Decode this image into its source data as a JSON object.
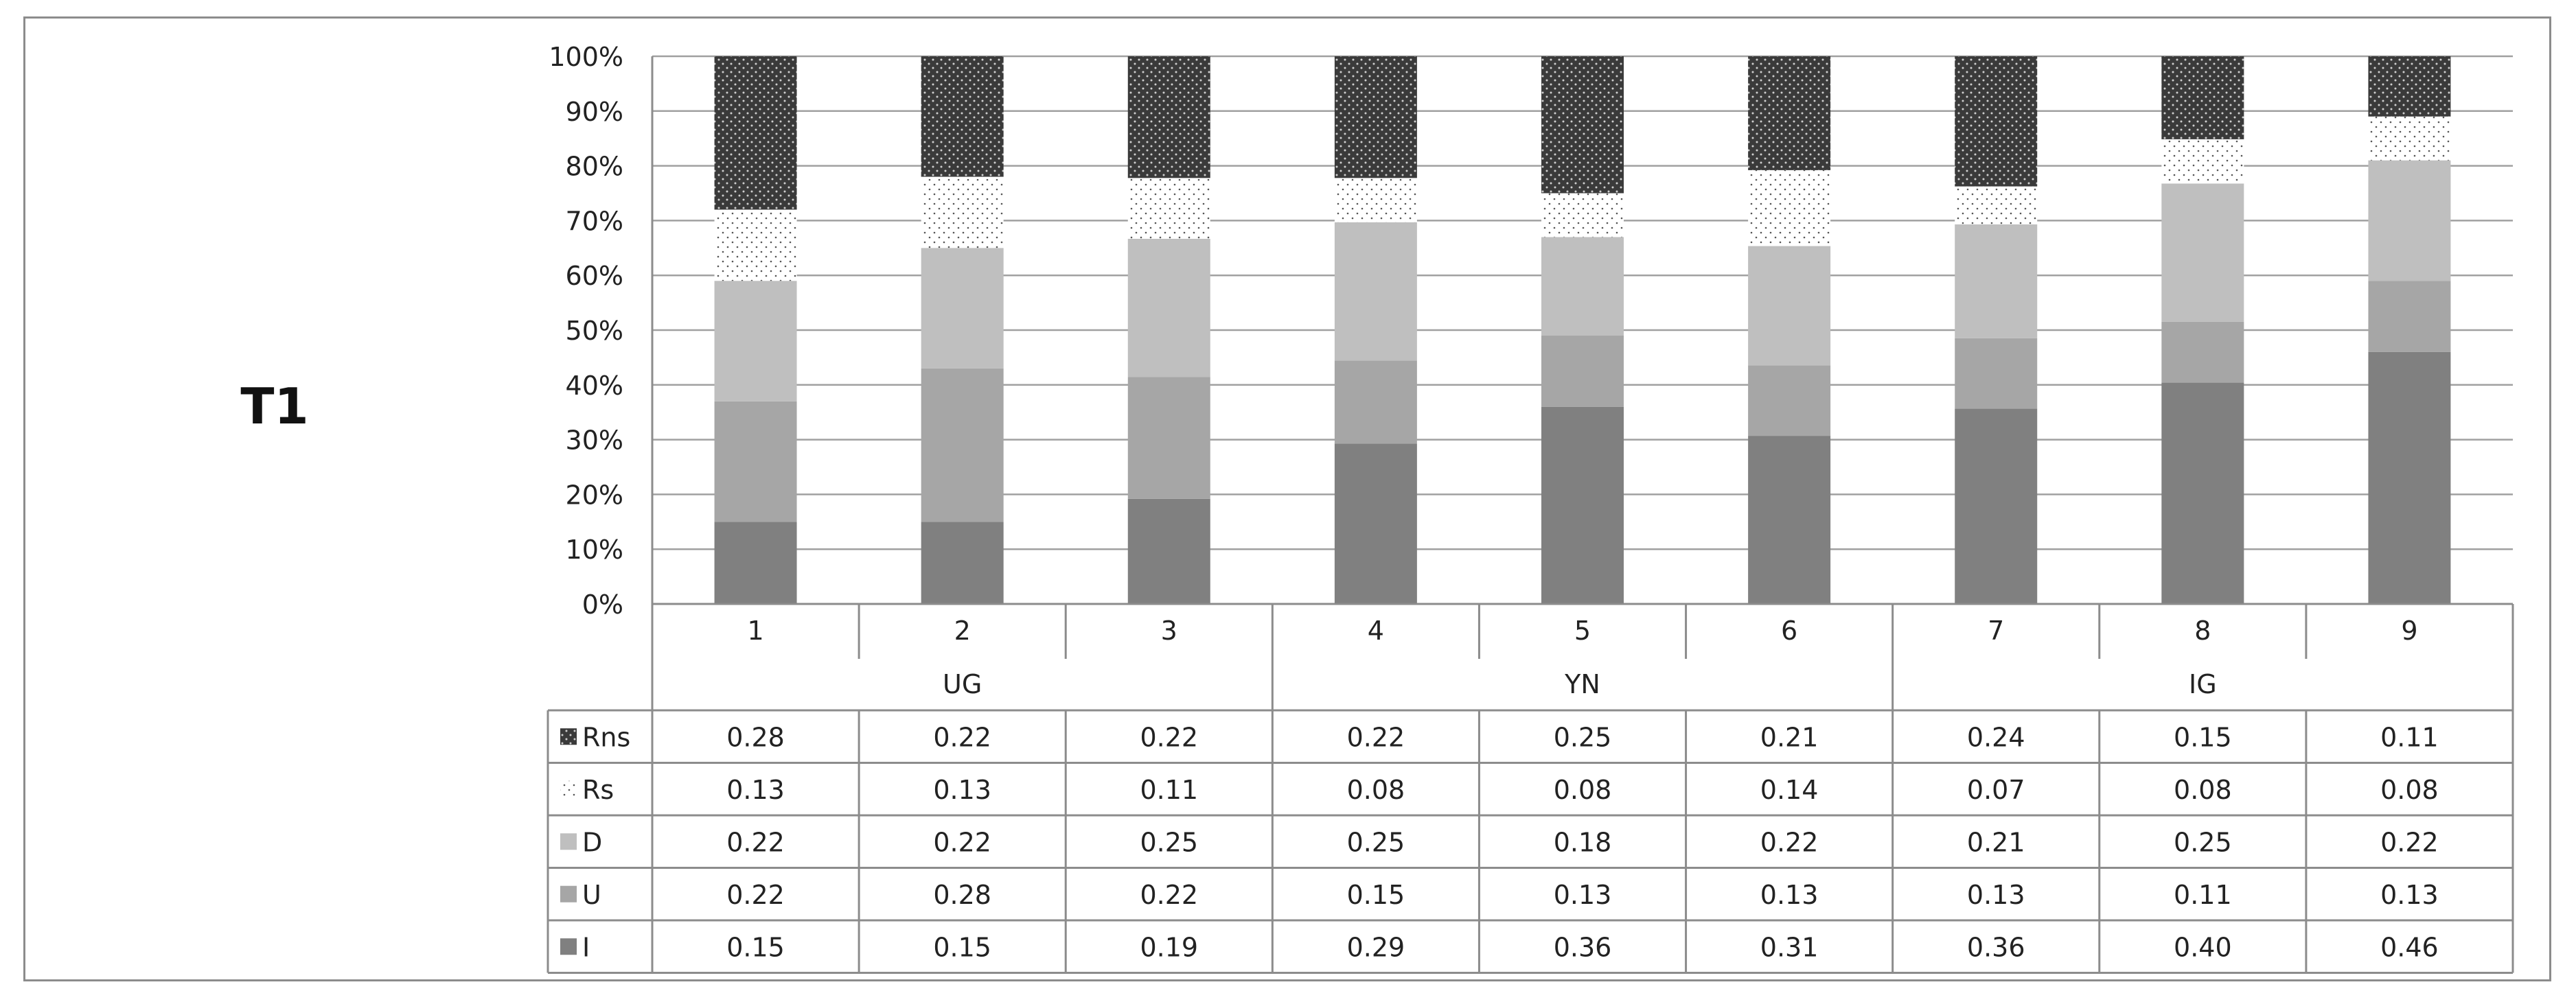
{
  "panel_label": "T1",
  "chart_data": {
    "type": "bar",
    "stacked": true,
    "normalized": true,
    "title": "",
    "xlabel": "",
    "ylabel": "",
    "ylim": [
      0,
      1
    ],
    "yticks": [
      "0%",
      "10%",
      "20%",
      "30%",
      "40%",
      "50%",
      "60%",
      "70%",
      "80%",
      "90%",
      "100%"
    ],
    "categories": [
      "1",
      "2",
      "3",
      "4",
      "5",
      "6",
      "7",
      "8",
      "9"
    ],
    "groups": [
      {
        "label": "UG",
        "span": [
          0,
          2
        ]
      },
      {
        "label": "YN",
        "span": [
          3,
          5
        ]
      },
      {
        "label": "IG",
        "span": [
          6,
          8
        ]
      }
    ],
    "legend_placement": "data-table-left",
    "series": [
      {
        "name": "I",
        "color": "#808080",
        "pattern": "solid",
        "values": [
          0.15,
          0.15,
          0.19,
          0.29,
          0.36,
          0.31,
          0.36,
          0.4,
          0.46
        ]
      },
      {
        "name": "U",
        "color": "#a6a6a6",
        "pattern": "solid",
        "values": [
          0.22,
          0.28,
          0.22,
          0.15,
          0.13,
          0.13,
          0.13,
          0.11,
          0.13
        ]
      },
      {
        "name": "D",
        "color": "#bfbfbf",
        "pattern": "solid",
        "values": [
          0.22,
          0.22,
          0.25,
          0.25,
          0.18,
          0.22,
          0.21,
          0.25,
          0.22
        ]
      },
      {
        "name": "Rs",
        "color": "#ffffff",
        "pattern": "sparse-dots",
        "values": [
          0.13,
          0.13,
          0.11,
          0.08,
          0.08,
          0.14,
          0.07,
          0.08,
          0.08
        ]
      },
      {
        "name": "Rns",
        "color": "#404040",
        "pattern": "dense-dots",
        "values": [
          0.28,
          0.22,
          0.22,
          0.22,
          0.25,
          0.21,
          0.24,
          0.15,
          0.11
        ]
      }
    ],
    "table_values": [
      [
        "0.28",
        "0.22",
        "0.22",
        "0.22",
        "0.25",
        "0.21",
        "0.24",
        "0.15",
        "0.11"
      ],
      [
        "0.13",
        "0.13",
        "0.11",
        "0.08",
        "0.08",
        "0.14",
        "0.07",
        "0.08",
        "0.08"
      ],
      [
        "0.22",
        "0.22",
        "0.25",
        "0.25",
        "0.18",
        "0.22",
        "0.21",
        "0.25",
        "0.22"
      ],
      [
        "0.22",
        "0.28",
        "0.22",
        "0.15",
        "0.13",
        "0.13",
        "0.13",
        "0.11",
        "0.13"
      ],
      [
        "0.15",
        "0.15",
        "0.19",
        "0.29",
        "0.36",
        "0.31",
        "0.36",
        "0.40",
        "0.46"
      ]
    ],
    "table_row_order": [
      "Rns",
      "Rs",
      "D",
      "U",
      "I"
    ],
    "grid": true
  }
}
